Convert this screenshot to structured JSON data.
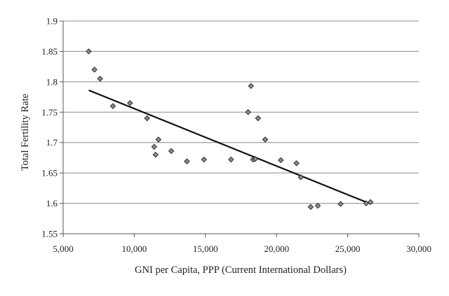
{
  "chart_data": {
    "type": "scatter",
    "title": "",
    "xlabel": "GNI per Capita, PPP (Current International Dollars)",
    "ylabel": "Total Fertility Rate",
    "xlim": [
      5000,
      30000
    ],
    "ylim": [
      1.55,
      1.9
    ],
    "x_ticks": [
      5000,
      10000,
      15000,
      20000,
      25000,
      30000
    ],
    "x_tick_labels": [
      "5,000",
      "10,000",
      "15,000",
      "20,000",
      "25,000",
      "30,000"
    ],
    "y_ticks": [
      1.55,
      1.6,
      1.65,
      1.7,
      1.75,
      1.8,
      1.85,
      1.9
    ],
    "y_tick_labels": [
      "1.55",
      "1.6",
      "1.65",
      "1.7",
      "1.75",
      "1.8",
      "1.85",
      "1.9"
    ],
    "grid": "horizontal",
    "legend": "none",
    "marker": "diamond",
    "colors": {
      "marker_fill": "#8c8c8c",
      "marker_stroke": "#222222",
      "trendline": "#111111",
      "grid": "#8a8a8a"
    },
    "points": [
      {
        "x": 6800,
        "y": 1.85
      },
      {
        "x": 7200,
        "y": 1.82
      },
      {
        "x": 7600,
        "y": 1.805
      },
      {
        "x": 8500,
        "y": 1.76
      },
      {
        "x": 9700,
        "y": 1.765
      },
      {
        "x": 10900,
        "y": 1.74
      },
      {
        "x": 11400,
        "y": 1.693
      },
      {
        "x": 11500,
        "y": 1.68
      },
      {
        "x": 11700,
        "y": 1.705
      },
      {
        "x": 12600,
        "y": 1.686
      },
      {
        "x": 13700,
        "y": 1.669
      },
      {
        "x": 14900,
        "y": 1.672
      },
      {
        "x": 16800,
        "y": 1.672
      },
      {
        "x": 18000,
        "y": 1.75
      },
      {
        "x": 18200,
        "y": 1.793
      },
      {
        "x": 18350,
        "y": 1.672
      },
      {
        "x": 18500,
        "y": 1.673
      },
      {
        "x": 18700,
        "y": 1.74
      },
      {
        "x": 19200,
        "y": 1.705
      },
      {
        "x": 20300,
        "y": 1.671
      },
      {
        "x": 21400,
        "y": 1.666
      },
      {
        "x": 21700,
        "y": 1.643
      },
      {
        "x": 22400,
        "y": 1.594
      },
      {
        "x": 22900,
        "y": 1.596
      },
      {
        "x": 24500,
        "y": 1.599
      },
      {
        "x": 26300,
        "y": 1.6
      },
      {
        "x": 26600,
        "y": 1.602
      }
    ],
    "trendline": {
      "x": [
        6800,
        26400
      ],
      "y": [
        1.786,
        1.601
      ]
    }
  }
}
